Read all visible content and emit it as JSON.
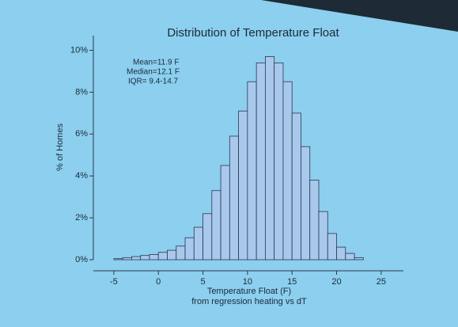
{
  "chart_data": {
    "type": "histogram",
    "title": "Distribution of Temperature Float",
    "xlabel": [
      "Temperature Float (F)",
      "from regression heating vs dT"
    ],
    "ylabel": "% of Homes",
    "annotations": [
      "Mean=11.9 F",
      "Median=12.1 F",
      "IQR= 9.4-14.7"
    ],
    "bins": [
      -5,
      -4,
      -3,
      -2,
      -1,
      0,
      1,
      2,
      3,
      4,
      5,
      6,
      7,
      8,
      9,
      10,
      11,
      12,
      13,
      14,
      15,
      16,
      17,
      18,
      19,
      20,
      21,
      22,
      23
    ],
    "values": [
      0.05,
      0.1,
      0.15,
      0.2,
      0.25,
      0.35,
      0.45,
      0.65,
      1.05,
      1.55,
      2.2,
      3.3,
      4.5,
      5.9,
      7.1,
      8.5,
      9.4,
      9.7,
      9.4,
      8.5,
      7.0,
      5.4,
      3.8,
      2.3,
      1.25,
      0.6,
      0.3,
      0.1
    ],
    "color": "#a9c9ec",
    "edgecolor": "#2a3550",
    "xlim": [
      -7.3,
      27.5
    ],
    "ylim": [
      0,
      10.7
    ],
    "xticks": [
      -5,
      0,
      5,
      10,
      15,
      20,
      25
    ],
    "yticks": [
      {
        "value": 0,
        "label": "0%"
      },
      {
        "value": 2,
        "label": "2%"
      },
      {
        "value": 4,
        "label": "4%"
      },
      {
        "value": 6,
        "label": "6%"
      },
      {
        "value": 8,
        "label": "8%"
      },
      {
        "value": 10,
        "label": "10%"
      }
    ]
  }
}
